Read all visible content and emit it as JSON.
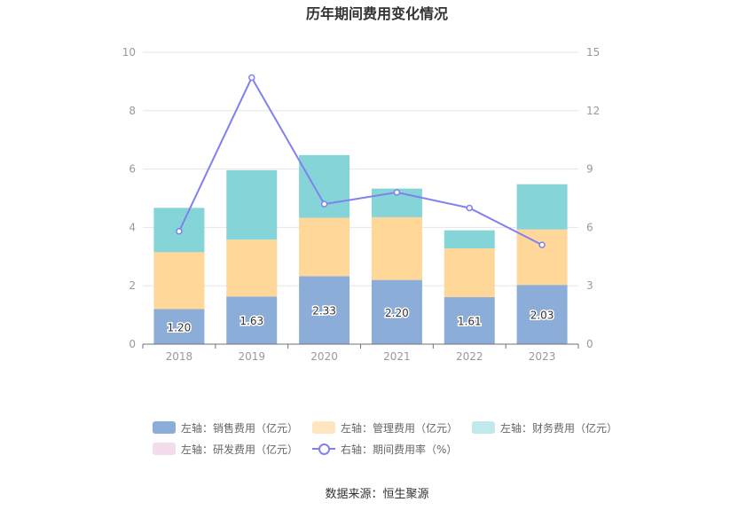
{
  "chart_data": {
    "type": "bar",
    "title": "历年期间费用变化情况",
    "categories": [
      "2018",
      "2019",
      "2020",
      "2021",
      "2022",
      "2023"
    ],
    "series": [
      {
        "name": "左轴：销售费用（亿元）",
        "type": "bar",
        "axis": "left",
        "color": "#8dadd9",
        "values": [
          1.2,
          1.63,
          2.33,
          2.2,
          1.61,
          2.03
        ],
        "labels_shown": true
      },
      {
        "name": "左轴：管理费用（亿元）",
        "type": "bar",
        "axis": "left",
        "color": "#ffd899",
        "values": [
          1.95,
          1.95,
          2.0,
          2.15,
          1.67,
          1.9
        ]
      },
      {
        "name": "左轴：财务费用（亿元）",
        "type": "bar",
        "axis": "left",
        "color": "#85d5d8",
        "values": [
          1.52,
          2.38,
          2.15,
          0.98,
          0.62,
          1.55
        ]
      },
      {
        "name": "左轴：研发费用（亿元）",
        "type": "bar",
        "axis": "left",
        "color": "#f3dcec",
        "values": [
          0,
          0,
          0,
          0,
          0,
          0
        ]
      },
      {
        "name": "右轴：期间费用率（%）",
        "type": "line",
        "axis": "right",
        "color": "#8080f0",
        "values": [
          5.8,
          13.7,
          7.2,
          7.8,
          7.0,
          5.1
        ]
      }
    ],
    "left_axis": {
      "ylim": [
        0,
        10
      ],
      "ticks": [
        "0",
        "2",
        "4",
        "6",
        "8",
        "10"
      ]
    },
    "right_axis": {
      "ylim": [
        0,
        15
      ],
      "ticks": [
        "0",
        "3",
        "6",
        "9",
        "12",
        "15"
      ]
    },
    "grid": true,
    "legend_position": "bottom"
  },
  "source": "数据来源：恒生聚源"
}
